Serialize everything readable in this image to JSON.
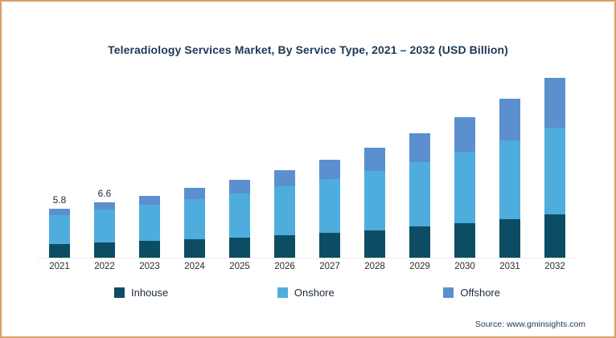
{
  "page": {
    "title": "Teleradiology Services Market, By Service Type, 2021 – 2032 (USD Billion)",
    "source": "Source: www.gminsights.com",
    "frame_border_color": "#d89e66"
  },
  "chart_data": {
    "type": "bar",
    "subtype": "stacked-vertical",
    "title": "Teleradiology Services Market, By Service Type, 2021 – 2032 (USD Billion)",
    "xlabel": "",
    "ylabel": "USD Billion",
    "ylim": [
      0,
      22
    ],
    "grid": false,
    "legend_position": "bottom",
    "categories": [
      "2021",
      "2022",
      "2023",
      "2024",
      "2025",
      "2026",
      "2027",
      "2028",
      "2029",
      "2030",
      "2031",
      "2032"
    ],
    "series": [
      {
        "name": "Inhouse",
        "color": "#0d4d63",
        "values": [
          1.6,
          1.8,
          2.0,
          2.2,
          2.4,
          2.7,
          3.0,
          3.3,
          3.7,
          4.1,
          4.6,
          5.2
        ]
      },
      {
        "name": "Onshore",
        "color": "#4fadde",
        "values": [
          3.5,
          3.9,
          4.3,
          4.8,
          5.3,
          5.8,
          6.4,
          7.0,
          7.7,
          8.5,
          9.4,
          10.3
        ]
      },
      {
        "name": "Offshore",
        "color": "#5b8fce",
        "values": [
          0.7,
          0.9,
          1.1,
          1.3,
          1.6,
          1.9,
          2.3,
          2.8,
          3.4,
          4.1,
          4.9,
          5.9
        ]
      }
    ],
    "totals": [
      5.8,
      6.6,
      7.4,
      8.3,
      9.3,
      10.4,
      11.7,
      13.1,
      14.8,
      16.7,
      18.9,
      21.4
    ],
    "bar_labels": [
      "5.8",
      "6.6",
      "",
      "",
      "",
      "",
      "",
      "",
      "",
      "",
      "",
      ""
    ]
  }
}
